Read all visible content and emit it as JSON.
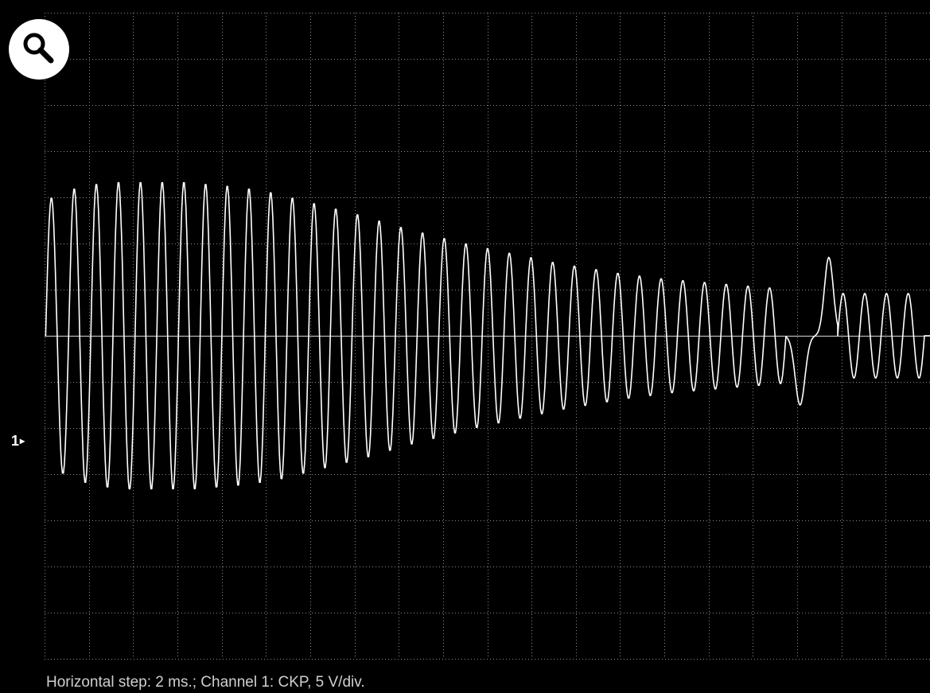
{
  "colors": {
    "background": "#000000",
    "grid": "#8a8a8a",
    "trace": "#ffffff",
    "baseline": "#d8d8d8"
  },
  "icons": {
    "zoom": "magnifier-icon",
    "channel_arrow": "arrow-right-icon"
  },
  "channel_marker": {
    "number": "1",
    "arrow": "▸"
  },
  "status_text": "Horizontal step: 2 ms.; Channel 1: CKP, 5 V/div.",
  "chart_data": {
    "type": "line",
    "grid": true,
    "x_divisions": 20,
    "y_divisions": 14,
    "x_unit": "ms",
    "y_unit": "V",
    "x_per_div": 2,
    "y_per_div": 5,
    "xlim": [
      0,
      40
    ],
    "ylim": [
      -35,
      35
    ],
    "baseline_y": 0,
    "series": [
      {
        "signal": "sine_envelope",
        "cycles": [
          {
            "start": 0.05,
            "period": 1.04,
            "amp": 15
          },
          {
            "start": 1.09,
            "period": 1.0,
            "amp": 16
          },
          {
            "start": 2.09,
            "period": 1.0,
            "amp": 16.5
          },
          {
            "start": 3.09,
            "period": 1.0,
            "amp": 16.7
          },
          {
            "start": 4.09,
            "period": 0.98,
            "amp": 16.7
          },
          {
            "start": 5.07,
            "period": 0.98,
            "amp": 16.7
          },
          {
            "start": 6.05,
            "period": 0.98,
            "amp": 16.7
          },
          {
            "start": 7.03,
            "period": 0.98,
            "amp": 16.5
          },
          {
            "start": 8.01,
            "period": 0.98,
            "amp": 16.3
          },
          {
            "start": 8.99,
            "period": 0.98,
            "amp": 16
          },
          {
            "start": 9.97,
            "period": 0.98,
            "amp": 15.6
          },
          {
            "start": 10.95,
            "period": 0.98,
            "amp": 15
          },
          {
            "start": 11.93,
            "period": 0.98,
            "amp": 14.4
          },
          {
            "start": 12.91,
            "period": 0.98,
            "amp": 13.8
          },
          {
            "start": 13.89,
            "period": 0.98,
            "amp": 13.2
          },
          {
            "start": 14.87,
            "period": 0.98,
            "amp": 12.5
          },
          {
            "start": 15.85,
            "period": 0.98,
            "amp": 11.8
          },
          {
            "start": 16.83,
            "period": 0.98,
            "amp": 11.2
          },
          {
            "start": 17.81,
            "period": 0.98,
            "amp": 10.6
          },
          {
            "start": 18.79,
            "period": 0.98,
            "amp": 10
          },
          {
            "start": 19.77,
            "period": 0.98,
            "amp": 9.5
          },
          {
            "start": 20.75,
            "period": 0.98,
            "amp": 9
          },
          {
            "start": 21.73,
            "period": 0.98,
            "amp": 8.5
          },
          {
            "start": 22.71,
            "period": 0.98,
            "amp": 8
          },
          {
            "start": 23.69,
            "period": 0.98,
            "amp": 7.6
          },
          {
            "start": 24.67,
            "period": 0.98,
            "amp": 7.2
          },
          {
            "start": 25.65,
            "period": 0.98,
            "amp": 6.8
          },
          {
            "start": 26.63,
            "period": 0.98,
            "amp": 6.5
          },
          {
            "start": 27.61,
            "period": 0.98,
            "amp": 6.2
          },
          {
            "start": 28.59,
            "period": 0.98,
            "amp": 6
          },
          {
            "start": 29.57,
            "period": 0.98,
            "amp": 5.8
          },
          {
            "start": 30.55,
            "period": 0.98,
            "amp": 5.6
          },
          {
            "start": 31.53,
            "period": 0.98,
            "amp": 5.4
          },
          {
            "start": 32.51,
            "period": 0.98,
            "amp": 5.2
          }
        ],
        "gap_pulse": {
          "start": 33.49,
          "end": 35.83,
          "neg_peak_x": 34.13,
          "neg_amp": 7.5,
          "pos_peak_x": 35.43,
          "pos_amp": 8.5
        },
        "tail_cycles": [
          {
            "start": 35.83,
            "period": 0.98,
            "amp": 4.6
          },
          {
            "start": 36.81,
            "period": 0.98,
            "amp": 4.6
          },
          {
            "start": 37.79,
            "period": 0.98,
            "amp": 4.6
          },
          {
            "start": 38.77,
            "period": 0.98,
            "amp": 4.6
          }
        ]
      }
    ]
  }
}
